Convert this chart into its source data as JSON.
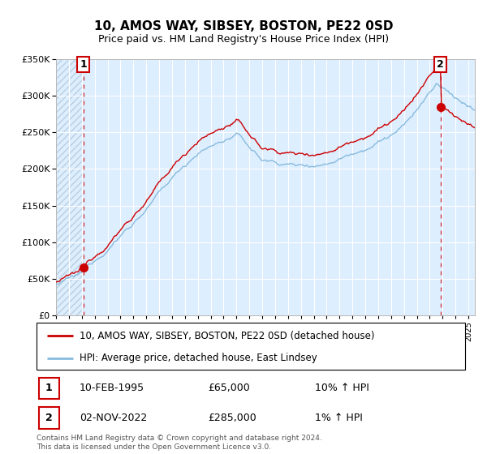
{
  "title": "10, AMOS WAY, SIBSEY, BOSTON, PE22 0SD",
  "subtitle": "Price paid vs. HM Land Registry's House Price Index (HPI)",
  "legend_line1": "10, AMOS WAY, SIBSEY, BOSTON, PE22 0SD (detached house)",
  "legend_line2": "HPI: Average price, detached house, East Lindsey",
  "table_rows": [
    {
      "num": "1",
      "date": "10-FEB-1995",
      "price": "£65,000",
      "hpi": "10% ↑ HPI"
    },
    {
      "num": "2",
      "date": "02-NOV-2022",
      "price": "£285,000",
      "hpi": "1% ↑ HPI"
    }
  ],
  "footnote": "Contains HM Land Registry data © Crown copyright and database right 2024.\nThis data is licensed under the Open Government Licence v3.0.",
  "sale1_year": 1995.11,
  "sale1_price": 65000,
  "sale2_year": 2022.84,
  "sale2_price": 285000,
  "ylim": [
    0,
    350000
  ],
  "xlim_start": 1993.0,
  "xlim_end": 2025.5,
  "plot_bg_color": "#ddeeff",
  "hatch_color": "#b8cfe0",
  "grid_color": "#ffffff",
  "red_line_color": "#cc0000",
  "blue_line_color": "#88bbdd",
  "sale_dot_color": "#cc0000",
  "dashed_line_color": "#cc0000",
  "title_fontsize": 11,
  "subtitle_fontsize": 9
}
